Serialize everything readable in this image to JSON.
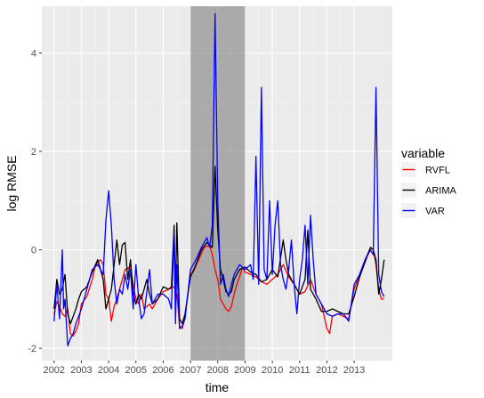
{
  "chart_data": {
    "type": "line",
    "xlabel": "time",
    "ylabel": "log RMSE",
    "xlim": [
      2001.55,
      2014.4
    ],
    "ylim": [
      -2.25,
      4.95
    ],
    "x_ticks": [
      {
        "value": 2002,
        "label": "2002"
      },
      {
        "value": 2003,
        "label": "2003"
      },
      {
        "value": 2004,
        "label": "2004"
      },
      {
        "value": 2005,
        "label": "2005"
      },
      {
        "value": 2006,
        "label": "2006"
      },
      {
        "value": 2007,
        "label": "2007"
      },
      {
        "value": 2008,
        "label": "2008"
      },
      {
        "value": 2009,
        "label": "2009"
      },
      {
        "value": 2010,
        "label": "2010"
      },
      {
        "value": 2011,
        "label": "2011"
      },
      {
        "value": 2012,
        "label": "2012"
      },
      {
        "value": 2013,
        "label": "2013"
      }
    ],
    "y_ticks": [
      {
        "value": -2,
        "label": "-2"
      },
      {
        "value": 0,
        "label": "0"
      },
      {
        "value": 2,
        "label": "2"
      },
      {
        "value": 4,
        "label": "4"
      }
    ],
    "grid": true,
    "shaded_region": {
      "x_start": 2007.0,
      "x_end": 2009.0
    },
    "legend": {
      "title": "variable",
      "position": "right"
    },
    "series": [
      {
        "name": "RVFL",
        "color": "#ff0000",
        "points": [
          [
            2002.0,
            -1.3
          ],
          [
            2002.1,
            -1.05
          ],
          [
            2002.2,
            -1.15
          ],
          [
            2002.3,
            -1.3
          ],
          [
            2002.4,
            -1.35
          ],
          [
            2002.5,
            -1.2
          ],
          [
            2002.6,
            -1.7
          ],
          [
            2002.7,
            -1.75
          ],
          [
            2002.8,
            -1.65
          ],
          [
            2002.9,
            -1.5
          ],
          [
            2003.0,
            -1.1
          ],
          [
            2003.2,
            -0.95
          ],
          [
            2003.4,
            -0.6
          ],
          [
            2003.5,
            -0.35
          ],
          [
            2003.6,
            -0.25
          ],
          [
            2003.7,
            -0.2
          ],
          [
            2003.8,
            -0.3
          ],
          [
            2003.9,
            -0.9
          ],
          [
            2004.0,
            -1.0
          ],
          [
            2004.1,
            -1.45
          ],
          [
            2004.2,
            -1.15
          ],
          [
            2004.3,
            -1.0
          ],
          [
            2004.4,
            -0.8
          ],
          [
            2004.6,
            -0.4
          ],
          [
            2004.8,
            -0.35
          ],
          [
            2004.9,
            -0.7
          ],
          [
            2005.0,
            -1.0
          ],
          [
            2005.1,
            -1.1
          ],
          [
            2005.2,
            -0.9
          ],
          [
            2005.3,
            -1.2
          ],
          [
            2005.5,
            -1.1
          ],
          [
            2005.6,
            -1.2
          ],
          [
            2005.8,
            -1.0
          ],
          [
            2006.0,
            -0.85
          ],
          [
            2006.2,
            -0.8
          ],
          [
            2006.4,
            -0.75
          ],
          [
            2006.5,
            -0.9
          ],
          [
            2006.6,
            -1.55
          ],
          [
            2006.7,
            -1.6
          ],
          [
            2006.8,
            -1.35
          ],
          [
            2007.0,
            -0.5
          ],
          [
            2007.1,
            -0.45
          ],
          [
            2007.3,
            -0.2
          ],
          [
            2007.5,
            0.05
          ],
          [
            2007.7,
            0.1
          ],
          [
            2007.8,
            -0.1
          ],
          [
            2007.9,
            -0.4
          ],
          [
            2008.0,
            -0.6
          ],
          [
            2008.1,
            -1.0
          ],
          [
            2008.2,
            -1.1
          ],
          [
            2008.3,
            -1.2
          ],
          [
            2008.4,
            -1.25
          ],
          [
            2008.5,
            -1.15
          ],
          [
            2008.6,
            -0.9
          ],
          [
            2008.7,
            -0.7
          ],
          [
            2008.8,
            -0.55
          ],
          [
            2008.9,
            -0.35
          ],
          [
            2009.0,
            -0.45
          ],
          [
            2009.2,
            -0.5
          ],
          [
            2009.4,
            -0.55
          ],
          [
            2009.6,
            -0.65
          ],
          [
            2009.8,
            -0.7
          ],
          [
            2010.0,
            -0.6
          ],
          [
            2010.2,
            -0.5
          ],
          [
            2010.4,
            -0.3
          ],
          [
            2010.6,
            -0.55
          ],
          [
            2010.8,
            -0.7
          ],
          [
            2011.0,
            -0.9
          ],
          [
            2011.2,
            -0.85
          ],
          [
            2011.4,
            -0.6
          ],
          [
            2011.6,
            -0.9
          ],
          [
            2011.8,
            -1.1
          ],
          [
            2012.0,
            -1.6
          ],
          [
            2012.1,
            -1.7
          ],
          [
            2012.2,
            -1.35
          ],
          [
            2012.4,
            -1.3
          ],
          [
            2012.6,
            -1.35
          ],
          [
            2012.8,
            -1.4
          ],
          [
            2013.0,
            -0.8
          ],
          [
            2013.2,
            -0.5
          ],
          [
            2013.4,
            -0.2
          ],
          [
            2013.6,
            0.05
          ],
          [
            2013.7,
            0.0
          ],
          [
            2013.8,
            -0.3
          ],
          [
            2013.9,
            -0.8
          ],
          [
            2014.0,
            -1.0
          ],
          [
            2014.1,
            -1.0
          ]
        ]
      },
      {
        "name": "ARIMA",
        "color": "#000000",
        "points": [
          [
            2002.0,
            -1.2
          ],
          [
            2002.1,
            -0.6
          ],
          [
            2002.2,
            -0.9
          ],
          [
            2002.3,
            -0.8
          ],
          [
            2002.4,
            -0.5
          ],
          [
            2002.5,
            -1.3
          ],
          [
            2002.6,
            -1.5
          ],
          [
            2002.7,
            -1.35
          ],
          [
            2002.8,
            -1.2
          ],
          [
            2002.9,
            -1.0
          ],
          [
            2003.0,
            -0.85
          ],
          [
            2003.2,
            -0.75
          ],
          [
            2003.4,
            -0.45
          ],
          [
            2003.6,
            -0.2
          ],
          [
            2003.8,
            -0.6
          ],
          [
            2003.9,
            -1.2
          ],
          [
            2004.0,
            -1.0
          ],
          [
            2004.1,
            -0.8
          ],
          [
            2004.2,
            -0.3
          ],
          [
            2004.3,
            0.2
          ],
          [
            2004.4,
            -0.3
          ],
          [
            2004.5,
            0.1
          ],
          [
            2004.6,
            0.15
          ],
          [
            2004.7,
            -0.6
          ],
          [
            2004.8,
            -0.2
          ],
          [
            2004.9,
            -0.9
          ],
          [
            2005.0,
            -1.1
          ],
          [
            2005.1,
            -0.9
          ],
          [
            2005.2,
            -1.0
          ],
          [
            2005.4,
            -0.6
          ],
          [
            2005.5,
            -0.9
          ],
          [
            2005.6,
            -1.1
          ],
          [
            2005.8,
            -1.0
          ],
          [
            2006.0,
            -0.75
          ],
          [
            2006.2,
            -0.8
          ],
          [
            2006.3,
            -0.75
          ],
          [
            2006.4,
            0.5
          ],
          [
            2006.45,
            -1.0
          ],
          [
            2006.5,
            0.55
          ],
          [
            2006.6,
            -1.4
          ],
          [
            2006.7,
            -1.5
          ],
          [
            2006.8,
            -1.3
          ],
          [
            2007.0,
            -0.55
          ],
          [
            2007.2,
            -0.3
          ],
          [
            2007.4,
            0.0
          ],
          [
            2007.6,
            0.15
          ],
          [
            2007.8,
            0.05
          ],
          [
            2007.9,
            1.7
          ],
          [
            2008.0,
            0.4
          ],
          [
            2008.1,
            -0.4
          ],
          [
            2008.2,
            -0.6
          ],
          [
            2008.3,
            -0.85
          ],
          [
            2008.4,
            -0.9
          ],
          [
            2008.5,
            -0.85
          ],
          [
            2008.6,
            -0.6
          ],
          [
            2008.8,
            -0.4
          ],
          [
            2009.0,
            -0.35
          ],
          [
            2009.2,
            -0.45
          ],
          [
            2009.4,
            -0.5
          ],
          [
            2009.6,
            -0.65
          ],
          [
            2009.8,
            -0.6
          ],
          [
            2010.0,
            -0.4
          ],
          [
            2010.2,
            -0.55
          ],
          [
            2010.4,
            0.2
          ],
          [
            2010.5,
            -0.2
          ],
          [
            2010.6,
            -0.5
          ],
          [
            2010.8,
            -0.7
          ],
          [
            2011.0,
            -0.9
          ],
          [
            2011.2,
            -0.6
          ],
          [
            2011.3,
            0.4
          ],
          [
            2011.4,
            -0.8
          ],
          [
            2011.6,
            -1.0
          ],
          [
            2011.8,
            -1.25
          ],
          [
            2012.0,
            -1.25
          ],
          [
            2012.2,
            -1.2
          ],
          [
            2012.4,
            -1.25
          ],
          [
            2012.6,
            -1.3
          ],
          [
            2012.8,
            -1.3
          ],
          [
            2013.0,
            -0.95
          ],
          [
            2013.2,
            -0.55
          ],
          [
            2013.4,
            -0.25
          ],
          [
            2013.6,
            0.05
          ],
          [
            2013.7,
            0.0
          ],
          [
            2013.8,
            -0.2
          ],
          [
            2013.9,
            -0.9
          ],
          [
            2014.0,
            -0.6
          ],
          [
            2014.1,
            -0.2
          ]
        ]
      },
      {
        "name": "VAR",
        "color": "#0000ff",
        "points": [
          [
            2002.0,
            -1.45
          ],
          [
            2002.1,
            -0.7
          ],
          [
            2002.2,
            -1.4
          ],
          [
            2002.3,
            0.0
          ],
          [
            2002.35,
            -1.2
          ],
          [
            2002.4,
            -1.0
          ],
          [
            2002.5,
            -1.95
          ],
          [
            2002.6,
            -1.8
          ],
          [
            2002.7,
            -1.7
          ],
          [
            2002.8,
            -1.5
          ],
          [
            2003.0,
            -1.2
          ],
          [
            2003.2,
            -0.8
          ],
          [
            2003.4,
            -0.4
          ],
          [
            2003.6,
            -0.3
          ],
          [
            2003.8,
            -0.5
          ],
          [
            2003.9,
            0.6
          ],
          [
            2004.0,
            1.2
          ],
          [
            2004.1,
            0.5
          ],
          [
            2004.2,
            -0.6
          ],
          [
            2004.3,
            -1.1
          ],
          [
            2004.4,
            -0.8
          ],
          [
            2004.5,
            -0.9
          ],
          [
            2004.6,
            -0.5
          ],
          [
            2004.7,
            -0.8
          ],
          [
            2004.8,
            -0.4
          ],
          [
            2004.9,
            -1.2
          ],
          [
            2005.0,
            -0.3
          ],
          [
            2005.1,
            -1.0
          ],
          [
            2005.2,
            -1.4
          ],
          [
            2005.3,
            -1.3
          ],
          [
            2005.5,
            -0.4
          ],
          [
            2005.6,
            -1.1
          ],
          [
            2005.8,
            -0.9
          ],
          [
            2006.0,
            -0.9
          ],
          [
            2006.2,
            -1.0
          ],
          [
            2006.3,
            -1.2
          ],
          [
            2006.4,
            0.35
          ],
          [
            2006.45,
            -1.5
          ],
          [
            2006.5,
            -0.3
          ],
          [
            2006.6,
            -1.6
          ],
          [
            2006.7,
            -1.55
          ],
          [
            2006.8,
            -1.4
          ],
          [
            2007.0,
            -0.4
          ],
          [
            2007.2,
            -0.2
          ],
          [
            2007.4,
            0.05
          ],
          [
            2007.6,
            0.25
          ],
          [
            2007.7,
            0.05
          ],
          [
            2007.8,
            0.5
          ],
          [
            2007.9,
            4.8
          ],
          [
            2008.0,
            1.0
          ],
          [
            2008.1,
            -0.7
          ],
          [
            2008.2,
            -0.5
          ],
          [
            2008.3,
            -0.8
          ],
          [
            2008.4,
            -0.95
          ],
          [
            2008.5,
            -0.7
          ],
          [
            2008.6,
            -0.5
          ],
          [
            2008.8,
            -0.3
          ],
          [
            2009.0,
            -0.4
          ],
          [
            2009.2,
            -0.3
          ],
          [
            2009.3,
            -0.6
          ],
          [
            2009.4,
            1.9
          ],
          [
            2009.5,
            -0.7
          ],
          [
            2009.6,
            3.3
          ],
          [
            2009.7,
            -0.4
          ],
          [
            2009.8,
            -0.6
          ],
          [
            2009.9,
            1.0
          ],
          [
            2010.0,
            -0.5
          ],
          [
            2010.1,
            0.5
          ],
          [
            2010.2,
            1.0
          ],
          [
            2010.3,
            -0.3
          ],
          [
            2010.4,
            -0.6
          ],
          [
            2010.5,
            -0.8
          ],
          [
            2010.6,
            -0.4
          ],
          [
            2010.7,
            0.2
          ],
          [
            2010.8,
            -0.7
          ],
          [
            2010.9,
            -1.3
          ],
          [
            2011.0,
            -0.6
          ],
          [
            2011.1,
            -0.2
          ],
          [
            2011.2,
            0.5
          ],
          [
            2011.3,
            -0.7
          ],
          [
            2011.4,
            0.7
          ],
          [
            2011.5,
            -0.2
          ],
          [
            2011.6,
            -0.9
          ],
          [
            2011.8,
            -1.1
          ],
          [
            2012.0,
            -1.3
          ],
          [
            2012.2,
            -1.35
          ],
          [
            2012.4,
            -1.3
          ],
          [
            2012.6,
            -1.3
          ],
          [
            2012.8,
            -1.45
          ],
          [
            2013.0,
            -0.7
          ],
          [
            2013.2,
            -0.5
          ],
          [
            2013.4,
            -0.2
          ],
          [
            2013.6,
            0.0
          ],
          [
            2013.7,
            -0.1
          ],
          [
            2013.8,
            3.3
          ],
          [
            2013.9,
            -0.5
          ],
          [
            2014.0,
            -0.85
          ],
          [
            2014.1,
            -0.95
          ]
        ]
      }
    ]
  }
}
